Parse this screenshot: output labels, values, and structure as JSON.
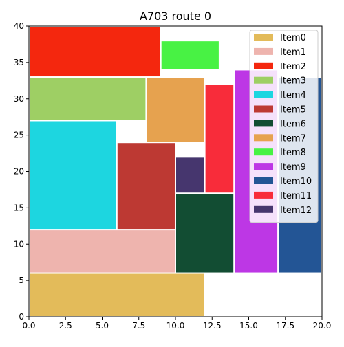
{
  "chart_data": {
    "type": "rect-packing",
    "title": "A703 route 0",
    "xlabel": "",
    "ylabel": "",
    "xlim": [
      0,
      20
    ],
    "ylim": [
      0,
      40
    ],
    "xticks": [
      "0.0",
      "2.5",
      "5.0",
      "7.5",
      "10.0",
      "12.5",
      "15.0",
      "17.5",
      "20.0"
    ],
    "xtick_values": [
      0,
      2.5,
      5,
      7.5,
      10,
      12.5,
      15,
      17.5,
      20
    ],
    "yticks": [
      "0",
      "5",
      "10",
      "15",
      "20",
      "25",
      "30",
      "35",
      "40"
    ],
    "ytick_values": [
      0,
      5,
      10,
      15,
      20,
      25,
      30,
      35,
      40
    ],
    "grid": false,
    "legend_position": "top-right",
    "items": [
      {
        "name": "Item0",
        "color": "#e3bb5a",
        "x": 0,
        "y": 0,
        "w": 12,
        "h": 6
      },
      {
        "name": "Item1",
        "color": "#eeb4ae",
        "x": 0,
        "y": 6,
        "w": 10,
        "h": 6
      },
      {
        "name": "Item2",
        "color": "#f4270e",
        "x": 0,
        "y": 33,
        "w": 9,
        "h": 7
      },
      {
        "name": "Item3",
        "color": "#9ecf64",
        "x": 0,
        "y": 27,
        "w": 8,
        "h": 6
      },
      {
        "name": "Item4",
        "color": "#1dd6e0",
        "x": 0,
        "y": 12,
        "w": 6,
        "h": 15
      },
      {
        "name": "Item5",
        "color": "#bd3933",
        "x": 6,
        "y": 12,
        "w": 4,
        "h": 12
      },
      {
        "name": "Item6",
        "color": "#124d33",
        "x": 10,
        "y": 6,
        "w": 4,
        "h": 11
      },
      {
        "name": "Item7",
        "color": "#e6a24f",
        "x": 8,
        "y": 24,
        "w": 4,
        "h": 9
      },
      {
        "name": "Item8",
        "color": "#48f244",
        "x": 9,
        "y": 34,
        "w": 4,
        "h": 4
      },
      {
        "name": "Item9",
        "color": "#bd37e5",
        "x": 14,
        "y": 6,
        "w": 3,
        "h": 28
      },
      {
        "name": "Item10",
        "color": "#235595",
        "x": 17,
        "y": 6,
        "w": 3,
        "h": 27
      },
      {
        "name": "Item11",
        "color": "#f82c3a",
        "x": 12,
        "y": 17,
        "w": 2,
        "h": 15
      },
      {
        "name": "Item12",
        "color": "#46366e",
        "x": 10,
        "y": 17,
        "w": 2,
        "h": 5
      }
    ]
  }
}
